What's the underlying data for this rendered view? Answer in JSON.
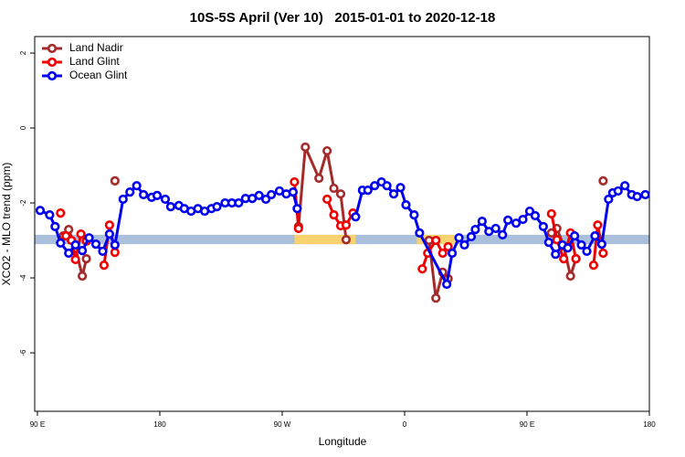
{
  "chart_data": {
    "type": "line",
    "title": "10S-5S April (Ver 10)   2015-01-01 to 2020-12-18",
    "x_label": "Longitude",
    "y_label": "XCO2 - MLO trend (ppm)",
    "xlim": [
      88,
      540
    ],
    "ylim": [
      -7.56,
      2.44
    ],
    "xticks": [
      {
        "value": 90,
        "label": "90 E"
      },
      180,
      {
        "value": 270,
        "label": "90 W"
      },
      {
        "value": 360,
        "label": "0"
      },
      {
        "value": 450,
        "label": "90 E"
      },
      {
        "value": 540,
        "label": "180"
      }
    ],
    "yticks": [
      2,
      0,
      -2,
      -4,
      -6
    ],
    "legend": "top-left",
    "surface_band": {
      "ylim": [
        -3.1,
        -2.85
      ],
      "color": "#a9bfdc",
      "segments": [
        {
          "x": [
            279,
            324
          ],
          "color": "#f7d26e"
        },
        {
          "x": [
            369,
            399
          ],
          "color": "#f7d26e"
        }
      ]
    },
    "series": [
      {
        "name": "Land Nadir",
        "color": "#a52a2a",
        "x": [
          109,
          113,
          118,
          123,
          126,
          null,
          147,
          null,
          282,
          287,
          297,
          303,
          308,
          313,
          317,
          null,
          378,
          383,
          388,
          392,
          null,
          468,
          472,
          477,
          482,
          486,
          null,
          506
        ],
        "values": [
          -2.88,
          -2.71,
          -3.2,
          -3.95,
          -3.49,
          null,
          -1.41,
          null,
          -2.63,
          -0.51,
          -1.34,
          -0.61,
          -1.61,
          -1.76,
          -2.98,
          null,
          -3.0,
          -4.54,
          -3.85,
          -4.02,
          null,
          -2.8,
          -2.68,
          -3.15,
          -3.95,
          -3.49,
          null,
          -1.41
        ]
      },
      {
        "name": "Land Glint",
        "color": "#ee0000",
        "x": [
          107,
          null,
          111,
          115,
          118,
          122,
          126,
          null,
          139,
          143,
          147,
          null,
          279,
          282,
          null,
          303,
          308,
          313,
          317,
          322,
          null,
          373,
          377,
          383,
          388,
          392,
          null,
          468,
          472,
          477,
          482,
          486,
          null,
          499,
          502,
          506
        ],
        "values": [
          -2.27,
          null,
          -2.88,
          -3.0,
          -3.51,
          -2.83,
          -3.02,
          null,
          -3.66,
          -2.59,
          -3.32,
          null,
          -1.44,
          -2.68,
          null,
          -1.9,
          -2.32,
          -2.61,
          -2.59,
          -2.27,
          null,
          -3.76,
          -3.34,
          -3.0,
          -3.34,
          -3.17,
          null,
          -2.29,
          -2.98,
          -3.49,
          -2.8,
          -3.49,
          null,
          -3.66,
          -2.59,
          -3.34
        ]
      },
      {
        "name": "Ocean Glint",
        "color": "#0000ee",
        "x": [
          92,
          99,
          103,
          107,
          113,
          118,
          123,
          128,
          133,
          138,
          143,
          147,
          153,
          158,
          163,
          168,
          174,
          178,
          184,
          188,
          194,
          198,
          203,
          208,
          213,
          218,
          222,
          228,
          233,
          238,
          243,
          248,
          253,
          258,
          262,
          268,
          273,
          278,
          281,
          null,
          324,
          329,
          333,
          338,
          343,
          347,
          352,
          357,
          361,
          367,
          371,
          391,
          395,
          400,
          404,
          409,
          412,
          417,
          422,
          427,
          432,
          436,
          442,
          447,
          452,
          456,
          462,
          466,
          471,
          476,
          480,
          485,
          490,
          494,
          500,
          505,
          510,
          513,
          517,
          522,
          527,
          531,
          537
        ],
        "values": [
          -2.2,
          -2.32,
          -2.63,
          -3.07,
          -3.34,
          -3.12,
          -3.27,
          -2.93,
          -3.1,
          -3.29,
          -2.83,
          -3.12,
          -1.9,
          -1.71,
          -1.54,
          -1.78,
          -1.85,
          -1.8,
          -1.9,
          -2.1,
          -2.07,
          -2.15,
          -2.22,
          -2.15,
          -2.22,
          -2.15,
          -2.1,
          -2.0,
          -2.0,
          -2.0,
          -1.88,
          -1.88,
          -1.8,
          -1.9,
          -1.78,
          -1.68,
          -1.76,
          -1.71,
          -2.15,
          null,
          -2.37,
          -1.66,
          -1.66,
          -1.54,
          -1.44,
          -1.54,
          -1.76,
          -1.59,
          -2.05,
          -2.32,
          -2.8,
          -4.17,
          -3.34,
          -2.93,
          -3.12,
          -2.9,
          -2.71,
          -2.49,
          -2.76,
          -2.68,
          -2.85,
          -2.46,
          -2.54,
          -2.44,
          -2.22,
          -2.34,
          -2.63,
          -3.05,
          -3.37,
          -3.12,
          -3.2,
          -2.88,
          -3.12,
          -3.29,
          -2.88,
          -3.1,
          -1.9,
          -1.73,
          -1.68,
          -1.54,
          -1.78,
          -1.83,
          -1.78
        ]
      }
    ]
  }
}
